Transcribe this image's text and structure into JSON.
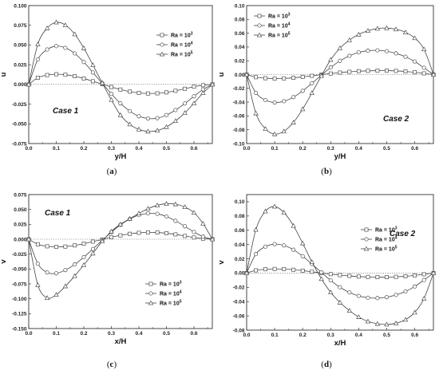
{
  "chart_data": [
    {
      "type": "line",
      "panel": "(a)",
      "annotation": "Case 1",
      "xlabel": "y/H",
      "ylabel": "u",
      "xlim": [
        0.0,
        0.6667
      ],
      "ylim": [
        -0.075,
        0.1
      ],
      "xticks": [
        "0.0",
        "0.1",
        "0.2",
        "0.3",
        "0.4",
        "0.5",
        "0.6"
      ],
      "yticks": [
        "-0.075",
        "-0.050",
        "-0.025",
        "0.000",
        "0.025",
        "0.050",
        "0.075",
        "0.100"
      ],
      "legend": "upper right",
      "series": [
        {
          "name": "Ra = 10³",
          "marker": "square",
          "x": [
            0,
            0.033,
            0.067,
            0.1,
            0.133,
            0.167,
            0.2,
            0.233,
            0.267,
            0.3,
            0.333,
            0.367,
            0.4,
            0.433,
            0.467,
            0.5,
            0.533,
            0.567,
            0.6,
            0.633,
            0.667
          ],
          "y": [
            0,
            0.0085,
            0.0119,
            0.0129,
            0.0123,
            0.0104,
            0.0075,
            0.004,
            0.0004,
            -0.0033,
            -0.0065,
            -0.0091,
            -0.0108,
            -0.0115,
            -0.0113,
            -0.0101,
            -0.0081,
            -0.0055,
            -0.0029,
            -0.001,
            0
          ]
        },
        {
          "name": "Ra = 10⁴",
          "marker": "circle",
          "x": [
            0,
            0.033,
            0.067,
            0.1,
            0.133,
            0.167,
            0.2,
            0.233,
            0.267,
            0.3,
            0.333,
            0.367,
            0.4,
            0.433,
            0.467,
            0.5,
            0.533,
            0.567,
            0.6,
            0.633,
            0.667
          ],
          "y": [
            0,
            0.0317,
            0.0443,
            0.0486,
            0.0464,
            0.0393,
            0.0284,
            0.0151,
            0.0013,
            -0.012,
            -0.0241,
            -0.0338,
            -0.0404,
            -0.0433,
            -0.0428,
            -0.0389,
            -0.0325,
            -0.0242,
            -0.0151,
            -0.0064,
            0
          ]
        },
        {
          "name": "Ra = 10⁵",
          "marker": "triangle",
          "x": [
            0,
            0.033,
            0.067,
            0.1,
            0.133,
            0.167,
            0.2,
            0.233,
            0.267,
            0.3,
            0.333,
            0.367,
            0.4,
            0.433,
            0.467,
            0.5,
            0.533,
            0.567,
            0.6,
            0.633,
            0.667
          ],
          "y": [
            0,
            0.051,
            0.0714,
            0.0788,
            0.0753,
            0.0637,
            0.0461,
            0.0246,
            0.0019,
            -0.0195,
            -0.0388,
            -0.0506,
            -0.057,
            -0.0596,
            -0.0585,
            -0.0539,
            -0.0463,
            -0.0361,
            -0.0239,
            -0.0109,
            0
          ]
        }
      ]
    },
    {
      "type": "line",
      "panel": "(b)",
      "annotation": "Case 2",
      "xlabel": "y/H",
      "ylabel": "u",
      "xlim": [
        0.0,
        0.6667
      ],
      "ylim": [
        -0.1,
        0.1
      ],
      "xticks": [
        "0.0",
        "0.1",
        "0.2",
        "0.3",
        "0.4",
        "0.5",
        "0.6"
      ],
      "yticks": [
        "-0.10",
        "-0.08",
        "-0.06",
        "-0.04",
        "-0.02",
        "0.00",
        "0.02",
        "0.04",
        "0.06",
        "0.08",
        "0.10"
      ],
      "legend": "upper left",
      "series": [
        {
          "name": "Ra = 10³",
          "marker": "square",
          "x": [
            0,
            0.033,
            0.067,
            0.1,
            0.133,
            0.167,
            0.2,
            0.233,
            0.267,
            0.3,
            0.333,
            0.367,
            0.4,
            0.433,
            0.467,
            0.5,
            0.533,
            0.567,
            0.6,
            0.633,
            0.667
          ],
          "y": [
            0,
            -0.0038,
            -0.0053,
            -0.0058,
            -0.0056,
            -0.0047,
            -0.0034,
            -0.0018,
            -0.0001,
            0.0015,
            0.0029,
            0.004,
            0.0049,
            0.0054,
            0.0057,
            0.0057,
            0.0053,
            0.0045,
            0.0033,
            0.0017,
            0
          ]
        },
        {
          "name": "Ra = 10⁴",
          "marker": "circle",
          "x": [
            0,
            0.033,
            0.067,
            0.1,
            0.133,
            0.167,
            0.2,
            0.233,
            0.267,
            0.3,
            0.333,
            0.367,
            0.4,
            0.433,
            0.467,
            0.5,
            0.533,
            0.567,
            0.6,
            0.633,
            0.667
          ],
          "y": [
            0,
            -0.0265,
            -0.037,
            -0.0405,
            -0.0387,
            -0.0327,
            -0.0236,
            -0.0126,
            -0.001,
            0.0103,
            0.0199,
            0.0272,
            0.0321,
            0.0346,
            0.0351,
            0.0338,
            0.0307,
            0.0258,
            0.0189,
            0.0098,
            0
          ]
        },
        {
          "name": "Ra = 10⁵",
          "marker": "triangle",
          "x": [
            0,
            0.033,
            0.067,
            0.1,
            0.133,
            0.167,
            0.2,
            0.233,
            0.267,
            0.3,
            0.333,
            0.367,
            0.4,
            0.433,
            0.467,
            0.5,
            0.533,
            0.567,
            0.6,
            0.633,
            0.667
          ],
          "y": [
            0,
            -0.0561,
            -0.0786,
            -0.0863,
            -0.0823,
            -0.0694,
            -0.0501,
            -0.0267,
            -0.0018,
            0.0215,
            0.0383,
            0.0501,
            0.0582,
            0.0636,
            0.0667,
            0.0674,
            0.0657,
            0.0612,
            0.0529,
            0.0367,
            0
          ]
        }
      ]
    },
    {
      "type": "line",
      "panel": "(c)",
      "annotation": "Case 1",
      "xlabel": "x/H",
      "ylabel": "v",
      "xlim": [
        0.0,
        0.6667
      ],
      "ylim": [
        -0.15,
        0.075
      ],
      "xticks": [
        "0.0",
        "0.1",
        "0.2",
        "0.3",
        "0.4",
        "0.5",
        "0.6"
      ],
      "yticks": [
        "-0.150",
        "-0.125",
        "-0.100",
        "-0.075",
        "-0.050",
        "-0.025",
        "0.000",
        "0.025",
        "0.050",
        "0.075"
      ],
      "legend": "lower right",
      "series": [
        {
          "name": "Ra = 10³",
          "marker": "square",
          "x": [
            0,
            0.033,
            0.067,
            0.1,
            0.133,
            0.167,
            0.2,
            0.233,
            0.267,
            0.3,
            0.333,
            0.367,
            0.4,
            0.433,
            0.467,
            0.5,
            0.533,
            0.567,
            0.6,
            0.633,
            0.667
          ],
          "y": [
            0,
            -0.0085,
            -0.0119,
            -0.0129,
            -0.0123,
            -0.0104,
            -0.0075,
            -0.004,
            -0.0004,
            0.0033,
            0.0065,
            0.0091,
            0.0108,
            0.0115,
            0.0113,
            0.0101,
            0.0081,
            0.0055,
            0.0029,
            0.001,
            0
          ]
        },
        {
          "name": "Ra = 10⁴",
          "marker": "circle",
          "x": [
            0,
            0.033,
            0.067,
            0.1,
            0.133,
            0.167,
            0.2,
            0.233,
            0.267,
            0.3,
            0.333,
            0.367,
            0.4,
            0.433,
            0.467,
            0.5,
            0.533,
            0.567,
            0.6,
            0.633,
            0.667
          ],
          "y": [
            0,
            -0.041,
            -0.0558,
            -0.0573,
            -0.0518,
            -0.0423,
            -0.0301,
            -0.0163,
            -0.0019,
            0.0118,
            0.0241,
            0.0339,
            0.0405,
            0.0434,
            0.0426,
            0.0382,
            0.0309,
            0.0217,
            0.0122,
            0.0044,
            0
          ]
        },
        {
          "name": "Ra = 10⁵",
          "marker": "triangle",
          "x": [
            0,
            0.033,
            0.067,
            0.1,
            0.133,
            0.167,
            0.2,
            0.233,
            0.267,
            0.3,
            0.333,
            0.367,
            0.4,
            0.433,
            0.467,
            0.5,
            0.533,
            0.567,
            0.6,
            0.633,
            0.667
          ],
          "y": [
            0,
            -0.0768,
            -0.0985,
            -0.0932,
            -0.0789,
            -0.0617,
            -0.0432,
            -0.0238,
            -0.0033,
            0.0132,
            0.0251,
            0.0344,
            0.0434,
            0.0513,
            0.057,
            0.0597,
            0.0589,
            0.0541,
            0.0447,
            0.0263,
            0
          ]
        }
      ]
    },
    {
      "type": "line",
      "panel": "(d)",
      "annotation": "Case 2",
      "xlabel": "x/H",
      "ylabel": "v",
      "xlim": [
        0.0,
        0.6667
      ],
      "ylim": [
        -0.08,
        0.11
      ],
      "xticks": [
        "0.0",
        "0.1",
        "0.2",
        "0.3",
        "0.4",
        "0.5",
        "0.6"
      ],
      "yticks": [
        "-0.08",
        "-0.06",
        "-0.04",
        "-0.02",
        "0.00",
        "0.02",
        "0.04",
        "0.06",
        "0.08",
        "0.10"
      ],
      "legend": "center right",
      "series": [
        {
          "name": "Ra = 10³",
          "marker": "square",
          "x": [
            0,
            0.033,
            0.067,
            0.1,
            0.133,
            0.167,
            0.2,
            0.233,
            0.267,
            0.3,
            0.333,
            0.367,
            0.4,
            0.433,
            0.467,
            0.5,
            0.533,
            0.567,
            0.6,
            0.633,
            0.667
          ],
          "y": [
            0,
            0.0038,
            0.0053,
            0.0058,
            0.0056,
            0.0047,
            0.0034,
            0.0018,
            0.0001,
            -0.0015,
            -0.0029,
            -0.004,
            -0.0049,
            -0.0054,
            -0.0057,
            -0.0057,
            -0.0053,
            -0.0045,
            -0.0033,
            -0.0017,
            0
          ]
        },
        {
          "name": "Ra = 10⁴",
          "marker": "circle",
          "x": [
            0,
            0.033,
            0.067,
            0.1,
            0.133,
            0.167,
            0.2,
            0.233,
            0.267,
            0.3,
            0.333,
            0.367,
            0.4,
            0.433,
            0.467,
            0.5,
            0.533,
            0.567,
            0.6,
            0.633,
            0.667
          ],
          "y": [
            0,
            0.0265,
            0.037,
            0.0405,
            0.0387,
            0.0327,
            0.0236,
            0.0126,
            0.001,
            -0.0103,
            -0.0199,
            -0.0272,
            -0.0321,
            -0.0346,
            -0.0351,
            -0.0338,
            -0.0307,
            -0.0258,
            -0.0189,
            -0.0098,
            0
          ]
        },
        {
          "name": "Ra = 10⁵",
          "marker": "triangle",
          "x": [
            0,
            0.033,
            0.067,
            0.1,
            0.133,
            0.167,
            0.2,
            0.233,
            0.267,
            0.3,
            0.333,
            0.367,
            0.4,
            0.433,
            0.467,
            0.5,
            0.533,
            0.567,
            0.6,
            0.633,
            0.667
          ],
          "y": [
            0,
            0.0609,
            0.0866,
            0.0933,
            0.0849,
            0.0663,
            0.0418,
            0.0156,
            -0.0082,
            -0.027,
            -0.0412,
            -0.0527,
            -0.0616,
            -0.0677,
            -0.0711,
            -0.072,
            -0.0703,
            -0.0653,
            -0.0552,
            -0.0357,
            0
          ]
        }
      ]
    }
  ]
}
